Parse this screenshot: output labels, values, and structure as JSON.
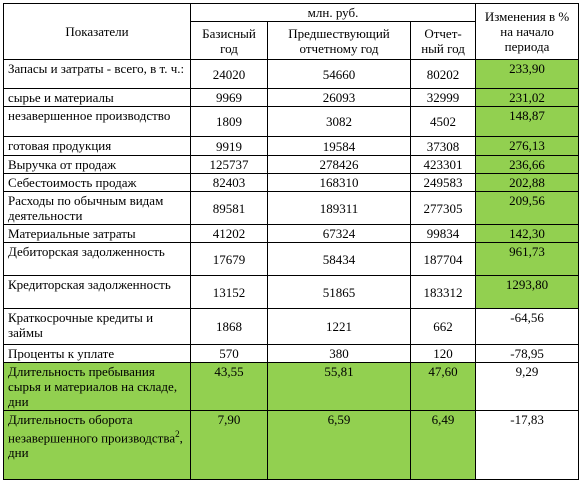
{
  "header": {
    "indicator": "Показатели",
    "unit": "млн. руб.",
    "change": "Изменения в % на начало периода",
    "columns": [
      "Базисный год",
      "Предшествующий отчетному год",
      "Отчет-ный год"
    ]
  },
  "highlight_color": "#92d050",
  "table": {
    "rows": [
      {
        "label": "Запасы и затраты - всего, в т. ч.:",
        "cells": [
          "24020",
          "54660",
          "80202",
          "233,90"
        ],
        "highlighted": [
          4
        ]
      },
      {
        "label": "сырье и материалы",
        "cells": [
          "9969",
          "26093",
          "32999",
          "231,02"
        ],
        "highlighted": [
          4
        ]
      },
      {
        "label": "незавершенное производство",
        "cells": [
          "1809",
          "3082",
          "4502",
          "148,87"
        ],
        "highlighted": [
          4
        ]
      },
      {
        "label": "готовая продукция",
        "cells": [
          "9919",
          "19584",
          "37308",
          "276,13"
        ],
        "highlighted": [
          4
        ]
      },
      {
        "label": "Выручка от продаж",
        "cells": [
          "125737",
          "278426",
          "423301",
          "236,66"
        ],
        "highlighted": [
          4
        ]
      },
      {
        "label": "Себестоимость продаж",
        "cells": [
          "82403",
          "168310",
          "249583",
          "202,88"
        ],
        "highlighted": [
          4
        ]
      },
      {
        "label": "Расходы по обычным видам деятельности",
        "cells": [
          "89581",
          "189311",
          "277305",
          "209,56"
        ],
        "highlighted": [
          4
        ]
      },
      {
        "label": "Материальные затраты",
        "cells": [
          "41202",
          "67324",
          "99834",
          "142,30"
        ],
        "highlighted": [
          4
        ]
      },
      {
        "label": "Дебиторская задолженность",
        "cells": [
          "17679",
          "58434",
          "187704",
          "961,73"
        ],
        "highlighted": [
          4
        ]
      },
      {
        "label": "Кредиторская задолженность",
        "cells": [
          "13152",
          "51865",
          "183312",
          "1293,80"
        ],
        "highlighted": [
          4
        ]
      },
      {
        "label": "Краткосрочные кредиты и займы",
        "cells": [
          "1868",
          "1221",
          "662",
          "-64,56"
        ],
        "highlighted": []
      },
      {
        "label": "Проценты к уплате",
        "cells": [
          "570",
          "380",
          "120",
          "-78,95"
        ],
        "highlighted": []
      },
      {
        "label": "Длительность пребывания сырья и материалов на складе, дни",
        "cells": [
          "43,55",
          "55,81",
          "47,60",
          "9,29"
        ],
        "highlighted": [
          0,
          1,
          2,
          3
        ]
      },
      {
        "label": "Длительность оборота незавершенного производства",
        "note": "2",
        "suffix": ", дни",
        "cells": [
          "7,90",
          "6,59",
          "6,49",
          "-17,83"
        ],
        "highlighted": [
          0,
          1,
          2,
          3
        ]
      }
    ]
  }
}
